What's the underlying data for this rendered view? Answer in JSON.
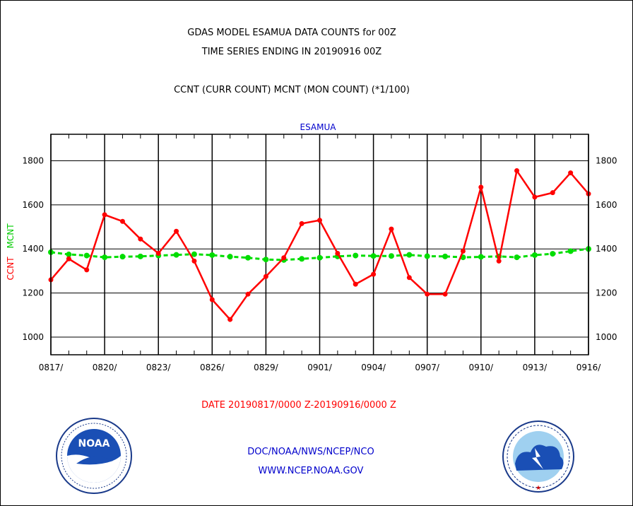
{
  "header": {
    "title_line1": "GDAS MODEL ESAMUA DATA COUNTS for 00Z",
    "title_line2": "TIME SERIES ENDING IN 20190916 00Z",
    "subtitle": "CCNT (CURR COUNT) MCNT (MON COUNT) (*1/100)"
  },
  "footer": {
    "date_range": "DATE 20190817/0000 Z-20190916/0000 Z",
    "org": "DOC/NOAA/NWS/NCEP/NCO",
    "url": "WWW.NCEP.NOAA.GOV"
  },
  "logos": {
    "noaa_text": "NOAA",
    "noaa_ring": "NATIONAL OCEANIC AND ATMOSPHERIC ADMINISTRATION · U.S. DEPARTMENT OF COMMERCE",
    "nws_ring": "NATIONAL WEATHER SERVICE"
  },
  "colors": {
    "ccnt": "#ff0000",
    "mcnt": "#00dd00",
    "title": "#000000",
    "station_label": "#0000cc",
    "footer_org": "#0000cc",
    "date_label": "#ff0000"
  },
  "chart_data": {
    "type": "line",
    "title": "ESAMUA",
    "ylabel_left": [
      "CCNT",
      "MCNT"
    ],
    "ylim": [
      920,
      1920
    ],
    "yticks": [
      1000,
      1200,
      1400,
      1600,
      1800
    ],
    "xticks": [
      "0817/",
      "0820/",
      "0823/",
      "0826/",
      "0829/",
      "0901/",
      "0904/",
      "0907/",
      "0910/",
      "0913/",
      "0916/"
    ],
    "grid": true,
    "x": [
      "20190817",
      "20190818",
      "20190819",
      "20190820",
      "20190821",
      "20190822",
      "20190823",
      "20190824",
      "20190825",
      "20190826",
      "20190827",
      "20190828",
      "20190829",
      "20190830",
      "20190831",
      "20190901",
      "20190902",
      "20190903",
      "20190904",
      "20190905",
      "20190906",
      "20190907",
      "20190908",
      "20190909",
      "20190910",
      "20190911",
      "20190912",
      "20190913",
      "20190914",
      "20190915",
      "20190916"
    ],
    "series": [
      {
        "name": "CCNT",
        "values": [
          1260,
          1355,
          1305,
          1555,
          1525,
          1445,
          1380,
          1480,
          1345,
          1170,
          1080,
          1195,
          1275,
          1360,
          1515,
          1530,
          1380,
          1240,
          1285,
          1490,
          1270,
          1195,
          1195,
          1390,
          1680,
          1345,
          1755,
          1635,
          1655,
          1745,
          1650
        ]
      },
      {
        "name": "MCNT",
        "values": [
          1385,
          1375,
          1370,
          1362,
          1365,
          1366,
          1370,
          1373,
          1376,
          1372,
          1365,
          1360,
          1352,
          1350,
          1355,
          1360,
          1366,
          1370,
          1368,
          1368,
          1373,
          1367,
          1366,
          1362,
          1364,
          1366,
          1362,
          1372,
          1378,
          1390,
          1400
        ]
      }
    ]
  }
}
